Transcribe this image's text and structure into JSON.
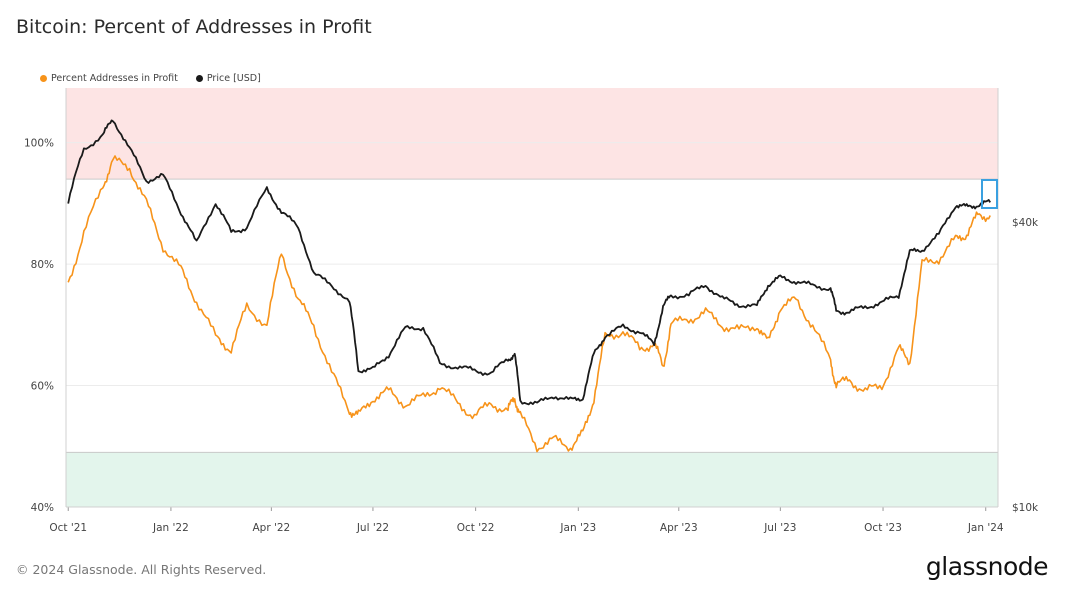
{
  "title": "Bitcoin: Percent of Addresses in Profit",
  "legend": [
    {
      "label": "Percent Addresses in Profit",
      "color": "#f7931a"
    },
    {
      "label": "Price [USD]",
      "color": "#1a1a1a"
    }
  ],
  "footer": "© 2024 Glassnode. All Rights Reserved.",
  "brand": "glassnode",
  "chart_data": {
    "type": "line",
    "x_ticks": [
      "Oct '21",
      "Jan '22",
      "Apr '22",
      "Jul '22",
      "Oct '22",
      "Jan '23",
      "Apr '23",
      "Jul '23",
      "Oct '23",
      "Jan '24"
    ],
    "y_left_ticks": [
      "100%",
      "80%",
      "60%",
      "40%"
    ],
    "y_right_ticks": [
      "$40k",
      "$10k"
    ],
    "y_left_range": [
      40,
      109
    ],
    "bands": [
      {
        "name": "upper-zone",
        "from": 94,
        "to": 109,
        "color": "#fde4e4"
      },
      {
        "name": "lower-zone",
        "from": 40,
        "to": 49,
        "color": "#e3f5ec"
      }
    ],
    "highlight_color": "#3aa0e0",
    "series": [
      {
        "name": "Percent Addresses in Profit",
        "color": "#f7931a",
        "axis": "left",
        "x": [
          "2021-10-01",
          "2021-10-15",
          "2021-11-01",
          "2021-11-10",
          "2021-11-25",
          "2021-12-10",
          "2021-12-25",
          "2022-01-10",
          "2022-01-24",
          "2022-02-10",
          "2022-02-24",
          "2022-03-10",
          "2022-03-28",
          "2022-04-10",
          "2022-04-25",
          "2022-05-09",
          "2022-05-25",
          "2022-06-10",
          "2022-06-18",
          "2022-07-01",
          "2022-07-15",
          "2022-07-30",
          "2022-08-15",
          "2022-08-30",
          "2022-09-15",
          "2022-09-30",
          "2022-10-15",
          "2022-10-30",
          "2022-11-05",
          "2022-11-10",
          "2022-11-25",
          "2022-12-10",
          "2022-12-25",
          "2023-01-05",
          "2023-01-15",
          "2023-01-25",
          "2023-02-10",
          "2023-02-25",
          "2023-03-10",
          "2023-03-18",
          "2023-03-25",
          "2023-04-10",
          "2023-04-25",
          "2023-05-10",
          "2023-05-25",
          "2023-06-10",
          "2023-06-20",
          "2023-07-01",
          "2023-07-15",
          "2023-07-30",
          "2023-08-15",
          "2023-08-20",
          "2023-09-01",
          "2023-09-15",
          "2023-09-30",
          "2023-10-15",
          "2023-10-25",
          "2023-11-05",
          "2023-11-20",
          "2023-12-05",
          "2023-12-15",
          "2023-12-25",
          "2024-01-05"
        ],
        "values": [
          77,
          85,
          93,
          97,
          96,
          90,
          83,
          79,
          74,
          68,
          66,
          73,
          70,
          82,
          74,
          70,
          62,
          56,
          55,
          58,
          59,
          57,
          58,
          60,
          57,
          55,
          57,
          56,
          58,
          55,
          50,
          51,
          50,
          52,
          58,
          68,
          69,
          66,
          67,
          63,
          70,
          71,
          72,
          70,
          69,
          70,
          67,
          73,
          74,
          70,
          64,
          60,
          61,
          59,
          60,
          66,
          64,
          80,
          81,
          84,
          85,
          88,
          88
        ]
      },
      {
        "name": "Price [USD]",
        "color": "#1a1a1a",
        "axis": "right",
        "x": [
          "2021-10-01",
          "2021-10-15",
          "2021-11-01",
          "2021-11-10",
          "2021-11-25",
          "2021-12-10",
          "2021-12-25",
          "2022-01-10",
          "2022-01-24",
          "2022-02-10",
          "2022-02-24",
          "2022-03-10",
          "2022-03-28",
          "2022-04-10",
          "2022-04-25",
          "2022-05-09",
          "2022-05-25",
          "2022-06-10",
          "2022-06-18",
          "2022-07-01",
          "2022-07-15",
          "2022-07-30",
          "2022-08-15",
          "2022-08-30",
          "2022-09-15",
          "2022-09-30",
          "2022-10-15",
          "2022-10-30",
          "2022-11-05",
          "2022-11-10",
          "2022-11-25",
          "2022-12-10",
          "2022-12-25",
          "2023-01-05",
          "2023-01-15",
          "2023-01-25",
          "2023-02-10",
          "2023-02-25",
          "2023-03-10",
          "2023-03-18",
          "2023-03-25",
          "2023-04-10",
          "2023-04-25",
          "2023-05-10",
          "2023-05-25",
          "2023-06-10",
          "2023-06-20",
          "2023-07-01",
          "2023-07-15",
          "2023-07-30",
          "2023-08-15",
          "2023-08-20",
          "2023-09-01",
          "2023-09-15",
          "2023-09-30",
          "2023-10-15",
          "2023-10-25",
          "2023-11-05",
          "2023-11-20",
          "2023-12-05",
          "2023-12-15",
          "2023-12-25",
          "2024-01-05"
        ],
        "values": [
          44000,
          57000,
          61000,
          66000,
          57000,
          49000,
          50000,
          42000,
          36000,
          44000,
          38000,
          39000,
          47000,
          42000,
          39000,
          31000,
          29500,
          27000,
          19500,
          19500,
          21000,
          23800,
          24000,
          20000,
          19800,
          19400,
          19200,
          20500,
          21000,
          16800,
          16500,
          17200,
          16800,
          17000,
          21000,
          23000,
          24000,
          23500,
          22000,
          26500,
          28000,
          28000,
          29500,
          27500,
          26800,
          26500,
          29500,
          30500,
          30000,
          29300,
          29000,
          26000,
          25800,
          26500,
          27000,
          28000,
          34500,
          35000,
          37500,
          43500,
          43000,
          43500,
          44000
        ]
      }
    ]
  }
}
